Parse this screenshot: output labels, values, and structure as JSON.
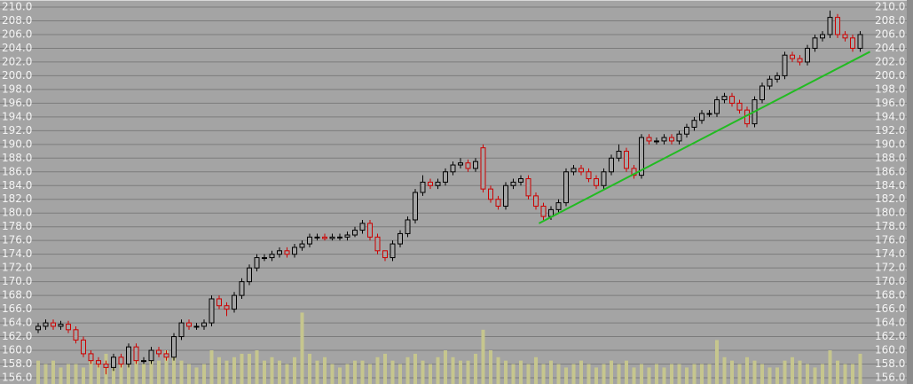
{
  "chart_data": {
    "type": "candlestick",
    "ylim": [
      156,
      210
    ],
    "yticks": [
      {
        "value": 156,
        "label": "156.0"
      },
      {
        "value": 158,
        "label": "158.0"
      },
      {
        "value": 160,
        "label": "160.0"
      },
      {
        "value": 162,
        "label": "162.0"
      },
      {
        "value": 164,
        "label": "164.0"
      },
      {
        "value": 166,
        "label": "166.0"
      },
      {
        "value": 168,
        "label": "168.0"
      },
      {
        "value": 170,
        "label": "170.0"
      },
      {
        "value": 172,
        "label": "172.0"
      },
      {
        "value": 174,
        "label": "174.0"
      },
      {
        "value": 176,
        "label": "176.0"
      },
      {
        "value": 178,
        "label": "178.0"
      },
      {
        "value": 180,
        "label": "180.0"
      },
      {
        "value": 182,
        "label": "182.0"
      },
      {
        "value": 184,
        "label": "184.0"
      },
      {
        "value": 186,
        "label": "186.0"
      },
      {
        "value": 188,
        "label": "188.0"
      },
      {
        "value": 190,
        "label": "190.0"
      },
      {
        "value": 192,
        "label": "192.0"
      },
      {
        "value": 194,
        "label": "194.0"
      },
      {
        "value": 196,
        "label": "196.0"
      },
      {
        "value": 198,
        "label": "198.0"
      },
      {
        "value": 200,
        "label": "200.0"
      },
      {
        "value": 202,
        "label": "202.0"
      },
      {
        "value": 204,
        "label": "204.0"
      },
      {
        "value": 206,
        "label": "206.0"
      },
      {
        "value": 208,
        "label": "208.0"
      },
      {
        "value": 210,
        "label": "210.0"
      }
    ],
    "grid": true,
    "up_color": "#000000",
    "down_color": "#cc0000",
    "volume_color": "#c6c68e",
    "open": [
      163,
      163.5,
      164,
      163.5,
      163.8,
      163,
      161.5,
      159.5,
      158.5,
      158,
      157.5,
      159,
      158,
      160.5,
      158.5,
      158.5,
      160,
      159.5,
      159,
      162,
      164,
      163.5,
      163.5,
      164,
      167.5,
      166.5,
      166,
      168,
      170,
      172,
      173.5,
      173.5,
      174,
      174.5,
      174,
      175,
      175.5,
      176.5,
      176.5,
      176.3,
      176.5,
      176.5,
      176.8,
      177.5,
      178.5,
      176.5,
      174.5,
      173.5,
      175.5,
      177,
      179,
      183,
      184.5,
      184,
      184.5,
      186,
      187,
      187.3,
      186.5,
      189.5,
      183.5,
      182,
      181,
      184,
      184.5,
      185,
      182.5,
      181,
      179.5,
      180.5,
      181.5,
      186,
      186.5,
      186,
      185,
      184,
      186,
      188,
      189,
      186.5,
      185.5,
      191,
      190.5,
      190.5,
      191,
      190.5,
      191.5,
      192.5,
      193.5,
      194.5,
      194.5,
      196.5,
      197,
      196,
      195,
      193,
      196.5,
      198.5,
      199.5,
      200,
      203,
      202.5,
      202,
      204,
      205.5,
      206,
      208.5,
      206,
      205.5,
      204
    ],
    "high": [
      164,
      164.5,
      164.5,
      164.3,
      164.3,
      163.5,
      162,
      160,
      159,
      158.5,
      159.5,
      159.5,
      161,
      161,
      159,
      160.5,
      160.5,
      160,
      162.5,
      164.5,
      164.5,
      164,
      164.5,
      168,
      168,
      167,
      168.5,
      170.5,
      172.5,
      174,
      174,
      174.5,
      175,
      175,
      175.5,
      176,
      177,
      177,
      177,
      177,
      177,
      177.3,
      178,
      179,
      179,
      177,
      174.5,
      176,
      177.5,
      179.5,
      183.5,
      185.5,
      185,
      185,
      186.5,
      187.5,
      188,
      187.8,
      188,
      190,
      184,
      182.5,
      184.5,
      185,
      185.5,
      185.5,
      183,
      181.5,
      181,
      182,
      186.5,
      187,
      187,
      186.5,
      185.5,
      186.5,
      188.5,
      190,
      189.5,
      187,
      191.5,
      191.5,
      191,
      191.5,
      191.5,
      192,
      193,
      194,
      195,
      195,
      197,
      197.5,
      197.5,
      196.5,
      195.5,
      197,
      199,
      200,
      200.5,
      203.5,
      203.5,
      203,
      204.5,
      206,
      206.5,
      209.5,
      209,
      206.5,
      206,
      206.5
    ],
    "low": [
      162.5,
      163,
      163,
      163,
      162.5,
      161,
      159,
      158,
      157.5,
      156.5,
      157,
      157.5,
      157.5,
      158,
      158,
      158,
      159,
      158.5,
      158.5,
      161.5,
      163,
      163,
      163,
      163.5,
      166,
      165,
      165.5,
      167.5,
      169.5,
      171.5,
      173,
      173,
      173.5,
      173.5,
      173.5,
      174.5,
      175,
      176,
      176,
      176,
      176,
      176,
      176.5,
      177,
      176,
      174,
      173,
      173,
      175,
      176.5,
      178.5,
      182.5,
      183.5,
      183.5,
      184,
      185.5,
      186.5,
      186,
      186,
      183,
      181.5,
      180.5,
      180.5,
      183.5,
      184,
      182,
      180.5,
      179,
      179,
      180,
      181,
      185.5,
      185.5,
      184.5,
      183.5,
      183.5,
      185.5,
      187.5,
      186,
      185,
      185,
      190,
      190,
      190,
      190,
      190,
      191,
      192,
      193,
      194,
      194,
      196,
      195.5,
      194.5,
      192.5,
      192.5,
      196,
      198,
      199,
      199.5,
      202,
      201.5,
      201.5,
      203.5,
      205,
      205.5,
      205.5,
      205,
      203.5,
      203.5
    ],
    "close": [
      163.5,
      164,
      163.5,
      163.8,
      163,
      161.5,
      159.5,
      158.5,
      158,
      157.5,
      159,
      158,
      160.5,
      158.5,
      158.5,
      160,
      159.5,
      159,
      162,
      164,
      163.5,
      163.5,
      164,
      167.5,
      166.5,
      166,
      168,
      170,
      172,
      173.5,
      173.5,
      174,
      174.5,
      174,
      175,
      175.5,
      176.5,
      176.5,
      176.3,
      176.5,
      176.5,
      176.8,
      177.5,
      178.5,
      176.5,
      174.5,
      173.5,
      175.5,
      177,
      179,
      183,
      184.5,
      184,
      184.5,
      186,
      187,
      187.3,
      186.5,
      187.5,
      183.5,
      182,
      181,
      184,
      184.5,
      185,
      182.5,
      181,
      179.5,
      180.5,
      181.5,
      186,
      186.5,
      186,
      185,
      184,
      186,
      188,
      189,
      186.5,
      185.5,
      191,
      190.5,
      190.5,
      191,
      190.5,
      191.5,
      192.5,
      193.5,
      194.5,
      194.5,
      196.5,
      197,
      196,
      195,
      193,
      196.5,
      198.5,
      199.5,
      200,
      203,
      202.5,
      202,
      204,
      205.5,
      206,
      208.5,
      206,
      205.5,
      204,
      206
    ],
    "volume": [
      2.5,
      2,
      2.5,
      1.5,
      2,
      2,
      1.5,
      3,
      2.5,
      3.5,
      2,
      2.5,
      4,
      3,
      2,
      3,
      2.5,
      4,
      3,
      2.5,
      2,
      1.5,
      2,
      4,
      3,
      2.5,
      3,
      3.5,
      3.5,
      4,
      2.5,
      3,
      2.5,
      2,
      3,
      9.5,
      3.5,
      2.5,
      3,
      2,
      1.5,
      2,
      2.5,
      2.5,
      2,
      3,
      3.5,
      2.5,
      2,
      3,
      3.5,
      2.5,
      2,
      3,
      4,
      3,
      2.5,
      2.5,
      3.5,
      7,
      4,
      3,
      2.5,
      2,
      2.5,
      2,
      3,
      2,
      2.5,
      2,
      1.5,
      2,
      2.5,
      2,
      1.5,
      2,
      2.5,
      2,
      2.5,
      1.5,
      2,
      1.5,
      2,
      1.5,
      2,
      2,
      1.5,
      2,
      2,
      2,
      5.5,
      3,
      2.5,
      2,
      3,
      2.5,
      2,
      1.5,
      1.5,
      2.5,
      3,
      2.5,
      2,
      1.5,
      2,
      4,
      2.5,
      2,
      2,
      3.5
    ],
    "trendline": {
      "x": [
        66.4,
        110.3
      ],
      "values": [
        178.5,
        203.5
      ],
      "color": "#22bb22"
    }
  }
}
